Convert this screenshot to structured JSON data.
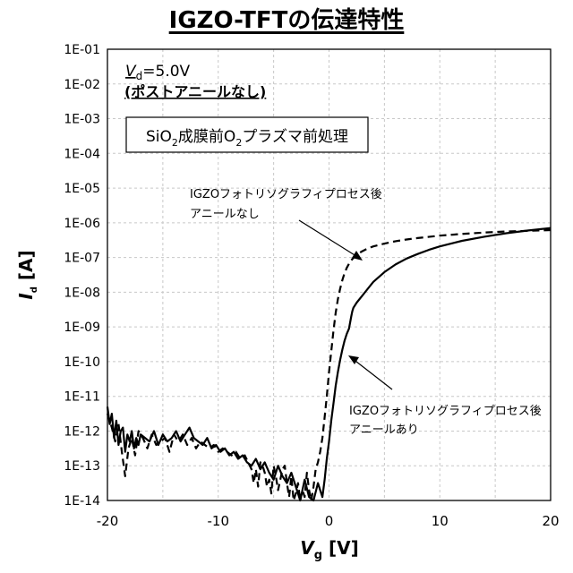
{
  "chart_data": {
    "type": "line",
    "title": "IGZO-TFTの伝達特性",
    "xlabel": "V",
    "xlabel_sub": "g",
    "xlabel_unit": " [V]",
    "ylabel": "I",
    "ylabel_sub": "d",
    "ylabel_unit": "  [A]",
    "x_ticks": [
      "-20",
      "-10",
      "0",
      "10",
      "20"
    ],
    "y_ticks": [
      "1E-14",
      "1E-13",
      "1E-12",
      "1E-11",
      "1E-10",
      "1E-09",
      "1E-08",
      "1E-07",
      "1E-06",
      "1E-05",
      "1E-04",
      "1E-03",
      "1E-02",
      "1E-01"
    ],
    "xlim": [
      -20,
      20
    ],
    "ylim_log10": [
      -14,
      -1
    ],
    "y_scale": "log",
    "grid": true,
    "condition": {
      "vd_symbol": "V",
      "vd_sub": "d",
      "vd_value": "=5.0V",
      "note": "(ポストアニールなし)"
    },
    "process_box": {
      "before": "SiO",
      "sub": "2",
      "middle": "成膜前O",
      "sub2": "2",
      "after": "プラズマ前処理"
    },
    "annotations": [
      {
        "line1": "IGZOフォトリソグラフィプロセス後",
        "line2": "アニールなし"
      },
      {
        "line1": "IGZOフォトリソグラフィプロセス後",
        "line2": "アニールあり"
      }
    ],
    "series": [
      {
        "style": "dashed",
        "color": "#000000",
        "x": [
          -20,
          -19.6,
          -19.3,
          -19,
          -18.7,
          -18.4,
          -18.1,
          -17.8,
          -17.5,
          -17.2,
          -16.8,
          -16.4,
          -16,
          -15.6,
          -15.2,
          -14.8,
          -14.4,
          -14,
          -13.6,
          -13.2,
          -12.8,
          -12.4,
          -12,
          -11.6,
          -11.2,
          -10.8,
          -10.4,
          -10,
          -9.6,
          -9.2,
          -8.8,
          -8.4,
          -8,
          -7.6,
          -7.3,
          -7,
          -6.8,
          -6.6,
          -6.4,
          -6.2,
          -6,
          -5.8,
          -5.6,
          -5.4,
          -5.2,
          -5,
          -4.8,
          -4.6,
          -4.4,
          -4.2,
          -4,
          -3.8,
          -3.6,
          -3.4,
          -3.2,
          -3,
          -2.8,
          -2.6,
          -2.4,
          -2.2,
          -2,
          -1.8,
          -1.6,
          -1.4,
          -1.2,
          -1,
          -0.8,
          -0.6,
          -0.4,
          -0.2,
          0,
          0.2,
          0.4,
          0.6,
          0.8,
          1,
          1.2,
          1.4,
          1.6,
          1.8,
          2,
          2.3,
          2.6,
          3,
          3.5,
          4,
          5,
          6,
          7,
          8,
          10,
          12,
          14,
          16,
          18,
          20
        ],
        "log_y": [
          -11.5,
          -11.9,
          -12.3,
          -11.8,
          -12.6,
          -13.3,
          -12.5,
          -12.2,
          -12.7,
          -12.0,
          -12.2,
          -12.5,
          -12.1,
          -12.4,
          -12.3,
          -12.2,
          -12.6,
          -12.1,
          -12.3,
          -12.1,
          -12.4,
          -12.2,
          -12.5,
          -12.3,
          -12.4,
          -12.5,
          -12.4,
          -12.6,
          -12.5,
          -12.6,
          -12.7,
          -12.6,
          -12.8,
          -12.7,
          -12.9,
          -13.1,
          -13.5,
          -13.1,
          -13.6,
          -12.9,
          -13.0,
          -13.2,
          -13.6,
          -13.4,
          -13.8,
          -13.0,
          -13.3,
          -13.7,
          -13.4,
          -13.1,
          -13.0,
          -13.5,
          -13.9,
          -13.3,
          -14.0,
          -13.8,
          -13.5,
          -14.0,
          -13.7,
          -13.9,
          -13.2,
          -13.7,
          -14.0,
          -13.6,
          -13.1,
          -12.9,
          -12.6,
          -12.2,
          -11.6,
          -11.0,
          -10.3,
          -9.7,
          -9.1,
          -8.6,
          -8.2,
          -7.9,
          -7.65,
          -7.45,
          -7.3,
          -7.18,
          -7.08,
          -6.98,
          -6.9,
          -6.82,
          -6.74,
          -6.68,
          -6.6,
          -6.53,
          -6.48,
          -6.44,
          -6.37,
          -6.32,
          -6.28,
          -6.25,
          -6.23,
          -6.21
        ]
      },
      {
        "style": "solid",
        "color": "#000000",
        "x": [
          -20,
          -19.8,
          -19.6,
          -19.4,
          -19.2,
          -19,
          -18.8,
          -18.6,
          -18.4,
          -18.2,
          -18,
          -17.8,
          -17.6,
          -17.4,
          -17.2,
          -17,
          -16.6,
          -16.2,
          -15.8,
          -15.4,
          -15,
          -14.6,
          -14.2,
          -13.8,
          -13.4,
          -13,
          -12.6,
          -12.2,
          -11.8,
          -11.4,
          -11,
          -10.6,
          -10.2,
          -9.8,
          -9.4,
          -9,
          -8.6,
          -8.2,
          -7.8,
          -7.4,
          -7,
          -6.6,
          -6.2,
          -5.8,
          -5.4,
          -5,
          -4.6,
          -4.2,
          -3.8,
          -3.4,
          -3,
          -2.6,
          -2.2,
          -1.8,
          -1.4,
          -1,
          -0.6,
          -0.4,
          -0.2,
          0,
          0.2,
          0.4,
          0.6,
          0.8,
          1,
          1.2,
          1.4,
          1.6,
          1.8,
          2,
          2.1,
          2.2,
          2.5,
          3,
          3.5,
          4,
          5,
          6,
          7,
          8,
          9,
          10,
          12,
          14,
          16,
          18,
          20
        ],
        "log_y": [
          -11.3,
          -11.8,
          -11.5,
          -12.2,
          -11.7,
          -12.4,
          -12.0,
          -11.9,
          -12.6,
          -12.1,
          -12.3,
          -12.0,
          -12.5,
          -12.2,
          -12.4,
          -12.1,
          -12.2,
          -12.3,
          -12.0,
          -12.4,
          -12.1,
          -12.3,
          -12.2,
          -12.0,
          -12.3,
          -12.1,
          -11.9,
          -12.2,
          -12.3,
          -12.4,
          -12.2,
          -12.5,
          -12.4,
          -12.6,
          -12.5,
          -12.7,
          -12.6,
          -12.8,
          -12.7,
          -12.9,
          -13.0,
          -12.8,
          -13.1,
          -12.9,
          -13.2,
          -13.4,
          -13.0,
          -13.3,
          -13.5,
          -13.2,
          -13.6,
          -14.0,
          -13.4,
          -13.9,
          -14.0,
          -13.5,
          -13.9,
          -13.4,
          -12.8,
          -12.3,
          -11.7,
          -11.2,
          -10.7,
          -10.3,
          -9.95,
          -9.65,
          -9.4,
          -9.2,
          -9.05,
          -8.7,
          -8.55,
          -8.45,
          -8.3,
          -8.1,
          -7.9,
          -7.7,
          -7.42,
          -7.2,
          -7.03,
          -6.9,
          -6.78,
          -6.68,
          -6.52,
          -6.4,
          -6.3,
          -6.22,
          -6.15
        ]
      }
    ]
  }
}
